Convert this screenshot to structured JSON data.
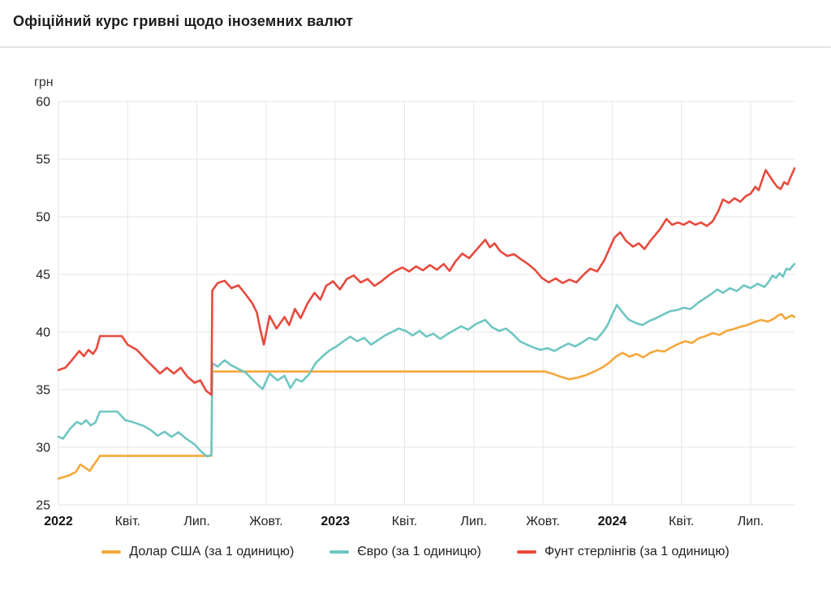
{
  "header": {
    "title": "Офіційний курс гривні щодо іноземних валют"
  },
  "chart_data": {
    "type": "line",
    "title": "Офіційний курс гривні щодо іноземних валют",
    "unit_label": "грн",
    "grid": true,
    "legend_position": "bottom",
    "colors": {
      "grid": "#e6e6e6",
      "axis_text": "#222222"
    },
    "y_axis": {
      "min": 25,
      "max": 60,
      "tick_step": 5,
      "ticks": [
        "25",
        "30",
        "35",
        "40",
        "45",
        "50",
        "55",
        "60"
      ]
    },
    "x_axis": {
      "domain_months_from_2022_01": [
        0,
        31.9
      ],
      "ticks": [
        {
          "m": 0,
          "label": "2022",
          "bold": true
        },
        {
          "m": 3,
          "label": "Квіт.",
          "bold": false
        },
        {
          "m": 6,
          "label": "Лип.",
          "bold": false
        },
        {
          "m": 9,
          "label": "Жовт.",
          "bold": false
        },
        {
          "m": 12,
          "label": "2023",
          "bold": true
        },
        {
          "m": 15,
          "label": "Квіт.",
          "bold": false
        },
        {
          "m": 18,
          "label": "Лип.",
          "bold": false
        },
        {
          "m": 21,
          "label": "Жовт.",
          "bold": false
        },
        {
          "m": 24,
          "label": "2024",
          "bold": true
        },
        {
          "m": 27,
          "label": "Квіт.",
          "bold": false
        },
        {
          "m": 30,
          "label": "Лип.",
          "bold": false
        }
      ]
    },
    "series": [
      {
        "key": "usd",
        "name": "Долар США (за 1 одиницю)",
        "color": "#F5A73B",
        "points": [
          [
            0,
            27.28
          ],
          [
            0.45,
            27.55
          ],
          [
            0.75,
            27.85
          ],
          [
            0.95,
            28.5
          ],
          [
            1.15,
            28.25
          ],
          [
            1.35,
            27.95
          ],
          [
            1.8,
            29.25
          ],
          [
            6.63,
            29.25
          ],
          [
            6.67,
            36.57
          ],
          [
            21.1,
            36.57
          ],
          [
            21.45,
            36.35
          ],
          [
            21.8,
            36.1
          ],
          [
            22.15,
            35.9
          ],
          [
            22.5,
            36.05
          ],
          [
            22.85,
            36.25
          ],
          [
            23.2,
            36.55
          ],
          [
            23.55,
            36.9
          ],
          [
            23.85,
            37.3
          ],
          [
            24.15,
            37.85
          ],
          [
            24.45,
            38.2
          ],
          [
            24.75,
            37.85
          ],
          [
            25.05,
            38.1
          ],
          [
            25.35,
            37.8
          ],
          [
            25.65,
            38.2
          ],
          [
            25.95,
            38.4
          ],
          [
            26.25,
            38.3
          ],
          [
            26.55,
            38.65
          ],
          [
            26.85,
            38.95
          ],
          [
            27.15,
            39.2
          ],
          [
            27.45,
            39.05
          ],
          [
            27.75,
            39.45
          ],
          [
            28.05,
            39.65
          ],
          [
            28.35,
            39.9
          ],
          [
            28.65,
            39.75
          ],
          [
            28.95,
            40.1
          ],
          [
            29.25,
            40.25
          ],
          [
            29.55,
            40.45
          ],
          [
            29.85,
            40.6
          ],
          [
            30.15,
            40.85
          ],
          [
            30.45,
            41.05
          ],
          [
            30.75,
            40.9
          ],
          [
            31.0,
            41.15
          ],
          [
            31.2,
            41.45
          ],
          [
            31.35,
            41.55
          ],
          [
            31.5,
            41.15
          ],
          [
            31.65,
            41.3
          ],
          [
            31.78,
            41.45
          ],
          [
            31.9,
            41.3
          ]
        ]
      },
      {
        "key": "eur",
        "name": "Євро (за 1 одиницю)",
        "color": "#6EC6C2",
        "points": [
          [
            0,
            30.92
          ],
          [
            0.2,
            30.75
          ],
          [
            0.5,
            31.6
          ],
          [
            0.8,
            32.2
          ],
          [
            1.0,
            32.0
          ],
          [
            1.2,
            32.35
          ],
          [
            1.4,
            31.9
          ],
          [
            1.6,
            32.15
          ],
          [
            1.8,
            33.1
          ],
          [
            2.55,
            33.1
          ],
          [
            2.9,
            32.35
          ],
          [
            3.2,
            32.2
          ],
          [
            3.7,
            31.85
          ],
          [
            4.0,
            31.5
          ],
          [
            4.3,
            31.0
          ],
          [
            4.6,
            31.35
          ],
          [
            4.9,
            30.9
          ],
          [
            5.2,
            31.3
          ],
          [
            5.5,
            30.8
          ],
          [
            5.9,
            30.25
          ],
          [
            6.2,
            29.6
          ],
          [
            6.45,
            29.2
          ],
          [
            6.63,
            29.35
          ],
          [
            6.67,
            37.3
          ],
          [
            6.9,
            37.0
          ],
          [
            7.2,
            37.55
          ],
          [
            7.5,
            37.1
          ],
          [
            7.8,
            36.8
          ],
          [
            8.1,
            36.5
          ],
          [
            8.4,
            35.9
          ],
          [
            8.65,
            35.4
          ],
          [
            8.85,
            35.05
          ],
          [
            9.15,
            36.4
          ],
          [
            9.5,
            35.8
          ],
          [
            9.8,
            36.2
          ],
          [
            10.05,
            35.15
          ],
          [
            10.3,
            35.9
          ],
          [
            10.55,
            35.7
          ],
          [
            10.85,
            36.3
          ],
          [
            11.15,
            37.3
          ],
          [
            11.45,
            37.9
          ],
          [
            11.75,
            38.4
          ],
          [
            12.05,
            38.75
          ],
          [
            12.35,
            39.2
          ],
          [
            12.65,
            39.6
          ],
          [
            12.95,
            39.2
          ],
          [
            13.25,
            39.5
          ],
          [
            13.55,
            38.9
          ],
          [
            13.85,
            39.3
          ],
          [
            14.15,
            39.7
          ],
          [
            14.45,
            40.0
          ],
          [
            14.75,
            40.3
          ],
          [
            15.05,
            40.1
          ],
          [
            15.35,
            39.7
          ],
          [
            15.65,
            40.1
          ],
          [
            15.95,
            39.6
          ],
          [
            16.25,
            39.85
          ],
          [
            16.55,
            39.4
          ],
          [
            16.85,
            39.8
          ],
          [
            17.15,
            40.15
          ],
          [
            17.45,
            40.5
          ],
          [
            17.75,
            40.2
          ],
          [
            18.1,
            40.7
          ],
          [
            18.5,
            41.05
          ],
          [
            18.8,
            40.4
          ],
          [
            19.1,
            40.1
          ],
          [
            19.4,
            40.3
          ],
          [
            19.7,
            39.8
          ],
          [
            20.0,
            39.2
          ],
          [
            20.3,
            38.9
          ],
          [
            20.6,
            38.65
          ],
          [
            20.9,
            38.45
          ],
          [
            21.2,
            38.6
          ],
          [
            21.5,
            38.35
          ],
          [
            21.8,
            38.7
          ],
          [
            22.1,
            39.0
          ],
          [
            22.4,
            38.75
          ],
          [
            22.7,
            39.1
          ],
          [
            23.0,
            39.5
          ],
          [
            23.3,
            39.3
          ],
          [
            23.6,
            40.0
          ],
          [
            23.8,
            40.6
          ],
          [
            24.0,
            41.5
          ],
          [
            24.2,
            42.35
          ],
          [
            24.45,
            41.7
          ],
          [
            24.7,
            41.1
          ],
          [
            25.0,
            40.8
          ],
          [
            25.3,
            40.6
          ],
          [
            25.6,
            40.95
          ],
          [
            25.9,
            41.2
          ],
          [
            26.2,
            41.5
          ],
          [
            26.5,
            41.8
          ],
          [
            26.8,
            41.9
          ],
          [
            27.1,
            42.1
          ],
          [
            27.4,
            42.0
          ],
          [
            27.7,
            42.5
          ],
          [
            28.0,
            42.9
          ],
          [
            28.3,
            43.3
          ],
          [
            28.55,
            43.7
          ],
          [
            28.8,
            43.4
          ],
          [
            29.1,
            43.8
          ],
          [
            29.4,
            43.55
          ],
          [
            29.7,
            44.05
          ],
          [
            30.0,
            43.8
          ],
          [
            30.3,
            44.2
          ],
          [
            30.6,
            43.9
          ],
          [
            30.8,
            44.4
          ],
          [
            30.95,
            44.9
          ],
          [
            31.1,
            44.7
          ],
          [
            31.25,
            45.1
          ],
          [
            31.4,
            44.8
          ],
          [
            31.55,
            45.5
          ],
          [
            31.7,
            45.4
          ],
          [
            31.8,
            45.7
          ],
          [
            31.9,
            45.9
          ]
        ]
      },
      {
        "key": "gbp",
        "name": "Фунт стерлінгів (за 1 одиницю)",
        "color": "#E8493D",
        "points": [
          [
            0,
            36.7
          ],
          [
            0.3,
            36.9
          ],
          [
            0.6,
            37.6
          ],
          [
            0.9,
            38.35
          ],
          [
            1.1,
            37.9
          ],
          [
            1.3,
            38.45
          ],
          [
            1.5,
            38.1
          ],
          [
            1.65,
            38.55
          ],
          [
            1.8,
            39.65
          ],
          [
            2.75,
            39.65
          ],
          [
            3.0,
            38.9
          ],
          [
            3.4,
            38.45
          ],
          [
            3.8,
            37.6
          ],
          [
            4.1,
            37.0
          ],
          [
            4.4,
            36.4
          ],
          [
            4.7,
            36.9
          ],
          [
            5.0,
            36.4
          ],
          [
            5.3,
            36.9
          ],
          [
            5.6,
            36.1
          ],
          [
            5.9,
            35.6
          ],
          [
            6.15,
            35.8
          ],
          [
            6.4,
            34.9
          ],
          [
            6.63,
            34.55
          ],
          [
            6.67,
            43.6
          ],
          [
            6.9,
            44.25
          ],
          [
            7.2,
            44.45
          ],
          [
            7.5,
            43.8
          ],
          [
            7.8,
            44.05
          ],
          [
            8.1,
            43.3
          ],
          [
            8.4,
            42.5
          ],
          [
            8.6,
            41.7
          ],
          [
            8.75,
            40.2
          ],
          [
            8.9,
            38.9
          ],
          [
            9.15,
            41.4
          ],
          [
            9.45,
            40.3
          ],
          [
            9.8,
            41.3
          ],
          [
            10.0,
            40.6
          ],
          [
            10.25,
            42.0
          ],
          [
            10.5,
            41.2
          ],
          [
            10.8,
            42.5
          ],
          [
            11.1,
            43.4
          ],
          [
            11.35,
            42.8
          ],
          [
            11.6,
            44.0
          ],
          [
            11.9,
            44.4
          ],
          [
            12.2,
            43.7
          ],
          [
            12.5,
            44.6
          ],
          [
            12.8,
            44.9
          ],
          [
            13.1,
            44.3
          ],
          [
            13.4,
            44.6
          ],
          [
            13.7,
            44.0
          ],
          [
            14.0,
            44.4
          ],
          [
            14.3,
            44.9
          ],
          [
            14.6,
            45.3
          ],
          [
            14.9,
            45.6
          ],
          [
            15.2,
            45.25
          ],
          [
            15.5,
            45.7
          ],
          [
            15.8,
            45.35
          ],
          [
            16.1,
            45.8
          ],
          [
            16.4,
            45.4
          ],
          [
            16.7,
            45.9
          ],
          [
            16.95,
            45.3
          ],
          [
            17.2,
            46.1
          ],
          [
            17.5,
            46.8
          ],
          [
            17.8,
            46.4
          ],
          [
            18.1,
            47.1
          ],
          [
            18.5,
            48.0
          ],
          [
            18.7,
            47.35
          ],
          [
            18.9,
            47.7
          ],
          [
            19.15,
            47.0
          ],
          [
            19.45,
            46.6
          ],
          [
            19.75,
            46.75
          ],
          [
            20.05,
            46.3
          ],
          [
            20.35,
            45.9
          ],
          [
            20.65,
            45.4
          ],
          [
            20.95,
            44.7
          ],
          [
            21.25,
            44.3
          ],
          [
            21.55,
            44.65
          ],
          [
            21.85,
            44.25
          ],
          [
            22.15,
            44.55
          ],
          [
            22.45,
            44.3
          ],
          [
            22.75,
            44.95
          ],
          [
            23.05,
            45.5
          ],
          [
            23.35,
            45.25
          ],
          [
            23.65,
            46.2
          ],
          [
            23.85,
            47.1
          ],
          [
            24.1,
            48.2
          ],
          [
            24.35,
            48.65
          ],
          [
            24.6,
            47.9
          ],
          [
            24.9,
            47.4
          ],
          [
            25.15,
            47.7
          ],
          [
            25.4,
            47.2
          ],
          [
            25.65,
            47.9
          ],
          [
            25.9,
            48.5
          ],
          [
            26.1,
            49.0
          ],
          [
            26.35,
            49.8
          ],
          [
            26.6,
            49.3
          ],
          [
            26.85,
            49.5
          ],
          [
            27.1,
            49.3
          ],
          [
            27.35,
            49.6
          ],
          [
            27.6,
            49.3
          ],
          [
            27.85,
            49.5
          ],
          [
            28.1,
            49.2
          ],
          [
            28.35,
            49.6
          ],
          [
            28.6,
            50.5
          ],
          [
            28.8,
            51.5
          ],
          [
            29.05,
            51.2
          ],
          [
            29.3,
            51.6
          ],
          [
            29.55,
            51.3
          ],
          [
            29.8,
            51.8
          ],
          [
            30.0,
            52.0
          ],
          [
            30.2,
            52.6
          ],
          [
            30.35,
            52.3
          ],
          [
            30.5,
            53.2
          ],
          [
            30.65,
            54.05
          ],
          [
            30.8,
            53.6
          ],
          [
            31.0,
            53.0
          ],
          [
            31.15,
            52.6
          ],
          [
            31.3,
            52.4
          ],
          [
            31.45,
            53.0
          ],
          [
            31.6,
            52.8
          ],
          [
            31.75,
            53.5
          ],
          [
            31.9,
            54.2
          ]
        ]
      }
    ]
  }
}
